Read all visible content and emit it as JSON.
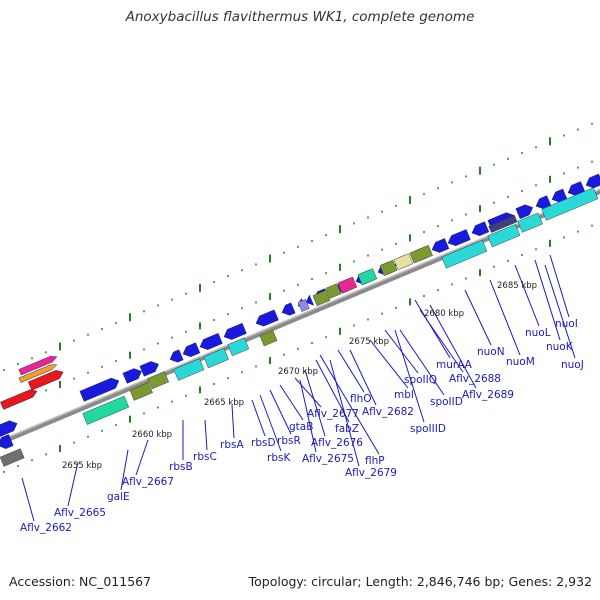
{
  "title": "Anoxybacillus flavithermus WK1, complete genome",
  "accession": "Accession: NC_011567",
  "stats": "Topology: circular; Length: 2,846,746 bp; Genes: 2,932",
  "ruler_labels": [
    "2655 kbp",
    "2660 kbp",
    "2665 kbp",
    "2670 kbp",
    "2675 kbp",
    "2680 kbp",
    "2685 kbp"
  ],
  "gene_labels": [
    "Aflv_2662",
    "Aflv_2665",
    "galE",
    "Aflv_2667",
    "rbsB",
    "rbsC",
    "rbsA",
    "rbsD",
    "rbsK",
    "rbsR",
    "gtaB",
    "Aflv_2677",
    "fabZ",
    "Aflv_2676",
    "Aflv_2675",
    "flhO",
    "flhP",
    "Aflv_2679",
    "Aflv_2682",
    "mbl",
    "spoIIQ",
    "spoIID",
    "spoIIID",
    "murAA",
    "Aflv_2688",
    "Aflv_2689",
    "nuoN",
    "nuoM",
    "nuoL",
    "nuoK",
    "nuoJ",
    "nuoI"
  ],
  "colors": {
    "backbone": "#8a8a8a",
    "cds_forward": "#1a1adc",
    "cds_reverse": "#1a1adc",
    "ticks": "#2a7a2a",
    "label": "#1a1ac0",
    "cyan_feature": "#2ad8d8",
    "teal_feature": "#20d8a0",
    "olive_feature": "#7a9a30",
    "khaki_feature": "#e8e0a0",
    "magenta_feature": "#e82890",
    "red_feature": "#e81818",
    "orange_feature": "#f0a020",
    "lavender_feature": "#8a8ae8",
    "gray_feature": "#707070"
  }
}
